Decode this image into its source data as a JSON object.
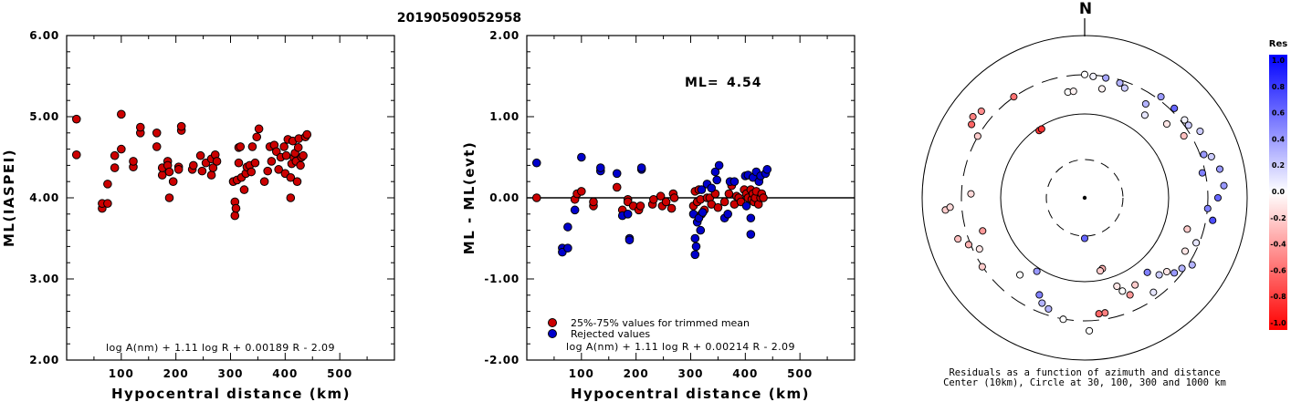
{
  "figure": {
    "event_id": "20190509052958"
  },
  "chart_data": [
    {
      "type": "scatter",
      "ylabel": "ML(IASPEI)",
      "xlabel": "Hypocentral distance (km)",
      "xlim": [
        0,
        600
      ],
      "ylim": [
        2.0,
        6.0
      ],
      "xticks": [
        "100",
        "200",
        "300",
        "400",
        "500"
      ],
      "yticks": [
        "2.00",
        "3.00",
        "4.00",
        "5.00",
        "6.00"
      ],
      "formula": "log A(nm) + 1.11 log R + 0.00189 R - 2.09",
      "series": [
        {
          "color": "#cc0000",
          "points": [
            [
              18,
              4.97
            ],
            [
              18,
              4.53
            ],
            [
              65,
              3.87
            ],
            [
              65,
              3.93
            ],
            [
              75,
              3.93
            ],
            [
              75,
              4.17
            ],
            [
              88,
              4.37
            ],
            [
              88,
              4.52
            ],
            [
              100,
              4.6
            ],
            [
              100,
              5.03
            ],
            [
              122,
              4.38
            ],
            [
              122,
              4.45
            ],
            [
              135,
              4.8
            ],
            [
              135,
              4.87
            ],
            [
              165,
              4.63
            ],
            [
              165,
              4.8
            ],
            [
              175,
              4.28
            ],
            [
              175,
              4.37
            ],
            [
              185,
              4.45
            ],
            [
              185,
              4.4
            ],
            [
              188,
              4.32
            ],
            [
              188,
              4.0
            ],
            [
              195,
              4.2
            ],
            [
              205,
              4.38
            ],
            [
              205,
              4.35
            ],
            [
              210,
              4.83
            ],
            [
              210,
              4.88
            ],
            [
              230,
              4.35
            ],
            [
              232,
              4.4
            ],
            [
              245,
              4.52
            ],
            [
              248,
              4.33
            ],
            [
              255,
              4.43
            ],
            [
              265,
              4.28
            ],
            [
              265,
              4.48
            ],
            [
              268,
              4.37
            ],
            [
              272,
              4.53
            ],
            [
              275,
              4.45
            ],
            [
              305,
              4.2
            ],
            [
              308,
              3.95
            ],
            [
              308,
              3.78
            ],
            [
              310,
              3.87
            ],
            [
              312,
              4.22
            ],
            [
              315,
              4.62
            ],
            [
              315,
              4.43
            ],
            [
              318,
              4.63
            ],
            [
              320,
              4.25
            ],
            [
              325,
              4.1
            ],
            [
              328,
              4.3
            ],
            [
              330,
              4.38
            ],
            [
              335,
              4.4
            ],
            [
              338,
              4.32
            ],
            [
              340,
              4.63
            ],
            [
              345,
              4.43
            ],
            [
              348,
              4.75
            ],
            [
              352,
              4.85
            ],
            [
              362,
              4.2
            ],
            [
              368,
              4.33
            ],
            [
              372,
              4.63
            ],
            [
              375,
              4.45
            ],
            [
              380,
              4.65
            ],
            [
              384,
              4.57
            ],
            [
              388,
              4.35
            ],
            [
              392,
              4.5
            ],
            [
              398,
              4.63
            ],
            [
              400,
              4.3
            ],
            [
              402,
              4.52
            ],
            [
              405,
              4.72
            ],
            [
              410,
              4.0
            ],
            [
              410,
              4.25
            ],
            [
              412,
              4.42
            ],
            [
              414,
              4.7
            ],
            [
              416,
              4.5
            ],
            [
              418,
              4.55
            ],
            [
              420,
              4.45
            ],
            [
              422,
              4.2
            ],
            [
              424,
              4.62
            ],
            [
              425,
              4.73
            ],
            [
              428,
              4.4
            ],
            [
              430,
              4.5
            ],
            [
              433,
              4.52
            ],
            [
              437,
              4.75
            ],
            [
              440,
              4.78
            ]
          ]
        }
      ]
    },
    {
      "type": "scatter",
      "ylabel": "ML - ML(evt)",
      "xlabel": "Hypocentral distance (km)",
      "xlim": [
        0,
        600
      ],
      "ylim": [
        -2.0,
        2.0
      ],
      "xticks": [
        "100",
        "200",
        "300",
        "400",
        "500"
      ],
      "yticks": [
        "-2.00",
        "-1.00",
        "0.00",
        "1.00",
        "2.00"
      ],
      "ml_label": "ML=",
      "ml_value": "4.54",
      "formula": "log A(nm) + 1.11 log R + 0.00214 R - 2.09",
      "zero_line": 0,
      "legend": [
        {
          "label": "25%-75% values for trimmed mean",
          "color": "#cc0000"
        },
        {
          "label": "Rejected values",
          "color": "#0000cc"
        }
      ],
      "series": [
        {
          "name": "25%-75% values for trimmed mean",
          "color": "#cc0000",
          "points": [
            [
              18,
              0.0
            ],
            [
              88,
              -0.02
            ],
            [
              92,
              0.05
            ],
            [
              100,
              0.08
            ],
            [
              122,
              -0.1
            ],
            [
              122,
              -0.05
            ],
            [
              165,
              0.13
            ],
            [
              175,
              -0.15
            ],
            [
              185,
              -0.02
            ],
            [
              185,
              -0.05
            ],
            [
              195,
              -0.1
            ],
            [
              205,
              -0.15
            ],
            [
              208,
              -0.1
            ],
            [
              230,
              -0.08
            ],
            [
              232,
              -0.02
            ],
            [
              245,
              0.02
            ],
            [
              248,
              -0.1
            ],
            [
              255,
              -0.05
            ],
            [
              265,
              -0.13
            ],
            [
              268,
              0.05
            ],
            [
              270,
              0.0
            ],
            [
              305,
              -0.1
            ],
            [
              308,
              0.08
            ],
            [
              312,
              -0.05
            ],
            [
              315,
              0.1
            ],
            [
              318,
              -0.02
            ],
            [
              320,
              -0.2
            ],
            [
              325,
              -0.15
            ],
            [
              330,
              0.0
            ],
            [
              335,
              0.0
            ],
            [
              338,
              -0.08
            ],
            [
              345,
              0.05
            ],
            [
              350,
              -0.12
            ],
            [
              362,
              -0.05
            ],
            [
              370,
              0.05
            ],
            [
              375,
              0.15
            ],
            [
              380,
              -0.08
            ],
            [
              384,
              0.02
            ],
            [
              388,
              0.0
            ],
            [
              392,
              -0.05
            ],
            [
              398,
              0.1
            ],
            [
              402,
              0.05
            ],
            [
              405,
              0.0
            ],
            [
              410,
              0.1
            ],
            [
              412,
              -0.02
            ],
            [
              414,
              0.05
            ],
            [
              416,
              -0.05
            ],
            [
              418,
              0.0
            ],
            [
              420,
              0.08
            ],
            [
              424,
              -0.08
            ],
            [
              428,
              0.0
            ],
            [
              430,
              0.05
            ],
            [
              433,
              0.0
            ]
          ]
        },
        {
          "name": "Rejected values",
          "color": "#0000cc",
          "points": [
            [
              18,
              0.43
            ],
            [
              65,
              -0.62
            ],
            [
              65,
              -0.67
            ],
            [
              75,
              -0.62
            ],
            [
              75,
              -0.36
            ],
            [
              88,
              -0.15
            ],
            [
              100,
              0.5
            ],
            [
              135,
              0.33
            ],
            [
              135,
              0.37
            ],
            [
              165,
              0.3
            ],
            [
              175,
              -0.22
            ],
            [
              185,
              -0.2
            ],
            [
              188,
              -0.5
            ],
            [
              188,
              -0.52
            ],
            [
              210,
              0.35
            ],
            [
              210,
              0.37
            ],
            [
              305,
              -0.2
            ],
            [
              308,
              -0.5
            ],
            [
              308,
              -0.7
            ],
            [
              310,
              -0.6
            ],
            [
              312,
              -0.3
            ],
            [
              315,
              -0.25
            ],
            [
              318,
              -0.4
            ],
            [
              320,
              0.1
            ],
            [
              322,
              -0.18
            ],
            [
              330,
              0.17
            ],
            [
              338,
              0.12
            ],
            [
              345,
              0.32
            ],
            [
              348,
              0.22
            ],
            [
              352,
              0.4
            ],
            [
              362,
              -0.25
            ],
            [
              368,
              -0.2
            ],
            [
              372,
              0.2
            ],
            [
              380,
              0.2
            ],
            [
              400,
              0.27
            ],
            [
              402,
              -0.1
            ],
            [
              405,
              0.28
            ],
            [
              410,
              -0.45
            ],
            [
              410,
              -0.25
            ],
            [
              414,
              0.25
            ],
            [
              420,
              0.32
            ],
            [
              425,
              0.2
            ],
            [
              428,
              0.27
            ],
            [
              437,
              0.3
            ],
            [
              440,
              0.35
            ]
          ]
        }
      ]
    },
    {
      "type": "scatter",
      "subtype": "polar-residual-map",
      "north_label": "N",
      "caption_line1": "Residuals as a function of azimuth and distance",
      "caption_line2": "Center (10km), Circle at 30, 100, 300 and 1000 km",
      "colorbar": {
        "title": "Res",
        "ticks": [
          "1.0",
          "0.8",
          "0.6",
          "0.4",
          "0.2",
          "0.0",
          "-0.2",
          "-0.4",
          "-0.6",
          "-0.8",
          "-1.0"
        ],
        "max_color": "#0000ff",
        "zero_color": "#ffffff",
        "min_color": "#ff0000"
      },
      "stations": [
        {
          "az": 0,
          "r": 0.76,
          "res": 0.0
        },
        {
          "az": 4,
          "r": 0.75,
          "res": 0.05
        },
        {
          "az": -9,
          "r": 0.66,
          "res": 0.0
        },
        {
          "az": -6,
          "r": 0.66,
          "res": -0.05
        },
        {
          "az": 9,
          "r": 0.68,
          "res": -0.05
        },
        {
          "az": 17,
          "r": 0.74,
          "res": 0.3
        },
        {
          "az": 20,
          "r": 0.72,
          "res": 0.2
        },
        {
          "az": 33,
          "r": 0.69,
          "res": 0.3
        },
        {
          "az": 36,
          "r": 0.63,
          "res": 0.1
        },
        {
          "az": 37,
          "r": 0.78,
          "res": 0.4
        },
        {
          "az": 48,
          "r": 0.68,
          "res": -0.1
        },
        {
          "az": 52,
          "r": 0.78,
          "res": 0.05
        },
        {
          "az": 45,
          "r": 0.78,
          "res": 0.6
        },
        {
          "az": 58,
          "r": 0.72,
          "res": -0.25
        },
        {
          "az": 60,
          "r": 0.82,
          "res": 0.2
        },
        {
          "az": 70,
          "r": 0.78,
          "res": 0.4
        },
        {
          "az": 72,
          "r": 0.82,
          "res": 0.2
        },
        {
          "az": 78,
          "r": 0.74,
          "res": 0.5
        },
        {
          "az": 78,
          "r": 0.85,
          "res": 0.4
        },
        {
          "az": 90,
          "r": 0.82,
          "res": 0.6
        },
        {
          "az": 95,
          "r": 0.76,
          "res": 0.5
        },
        {
          "az": 107,
          "r": 0.66,
          "res": -0.2
        },
        {
          "az": 112,
          "r": 0.74,
          "res": 0.1
        },
        {
          "az": 118,
          "r": 0.7,
          "res": -0.1
        },
        {
          "az": 122,
          "r": 0.78,
          "res": 0.3
        },
        {
          "az": 126,
          "r": 0.74,
          "res": 0.3
        },
        {
          "az": 130,
          "r": 0.72,
          "res": 0.4
        },
        {
          "az": 132,
          "r": 0.68,
          "res": -0.1
        },
        {
          "az": 136,
          "r": 0.66,
          "res": 0.2
        },
        {
          "az": 140,
          "r": 0.6,
          "res": 0.5
        },
        {
          "az": 144,
          "r": 0.72,
          "res": 0.1
        },
        {
          "az": 150,
          "r": 0.62,
          "res": -0.2
        },
        {
          "az": 155,
          "r": 0.66,
          "res": -0.4
        },
        {
          "az": 158,
          "r": 0.62,
          "res": 0.0
        },
        {
          "az": 160,
          "r": 0.58,
          "res": -0.1
        },
        {
          "az": 166,
          "r": 0.45,
          "res": -0.3
        },
        {
          "az": 168,
          "r": 0.46,
          "res": -0.2
        },
        {
          "az": 170,
          "r": 0.72,
          "res": -0.5
        },
        {
          "az": 173,
          "r": 0.72,
          "res": -0.6
        },
        {
          "az": 178,
          "r": 0.82,
          "res": 0.0
        },
        {
          "az": 190,
          "r": 0.76,
          "res": 0.0
        },
        {
          "az": 198,
          "r": 0.72,
          "res": 0.3
        },
        {
          "az": 202,
          "r": 0.7,
          "res": 0.3
        },
        {
          "az": 205,
          "r": 0.66,
          "res": 0.5
        },
        {
          "az": 213,
          "r": 0.54,
          "res": 0.4
        },
        {
          "az": 220,
          "r": 0.62,
          "res": 0.0
        },
        {
          "az": 236,
          "r": 0.76,
          "res": -0.2
        },
        {
          "az": 244,
          "r": 0.72,
          "res": -0.1
        },
        {
          "az": 248,
          "r": 0.77,
          "res": -0.3
        },
        {
          "az": 252,
          "r": 0.82,
          "res": -0.25
        },
        {
          "az": 252,
          "r": 0.66,
          "res": -0.4
        },
        {
          "az": 265,
          "r": 0.86,
          "res": -0.2
        },
        {
          "az": 266,
          "r": 0.83,
          "res": -0.15
        },
        {
          "az": 272,
          "r": 0.7,
          "res": -0.15
        },
        {
          "az": 300,
          "r": 0.76,
          "res": -0.2
        },
        {
          "az": 303,
          "r": 0.83,
          "res": -0.6
        },
        {
          "az": 306,
          "r": 0.85,
          "res": -0.5
        },
        {
          "az": 310,
          "r": 0.83,
          "res": -0.45
        },
        {
          "az": 325,
          "r": 0.76,
          "res": -0.55
        },
        {
          "az": 326,
          "r": 0.5,
          "res": -0.8
        },
        {
          "az": 328,
          "r": 0.5,
          "res": -0.8
        },
        {
          "az": 180,
          "r": 0.25,
          "res": 0.6
        },
        {
          "az": 55,
          "r": 0.78,
          "res": 0.2
        },
        {
          "az": 85,
          "r": 0.86,
          "res": 0.4
        },
        {
          "az": 100,
          "r": 0.8,
          "res": 0.7
        },
        {
          "az": 10,
          "r": 0.75,
          "res": 0.35
        }
      ]
    }
  ]
}
